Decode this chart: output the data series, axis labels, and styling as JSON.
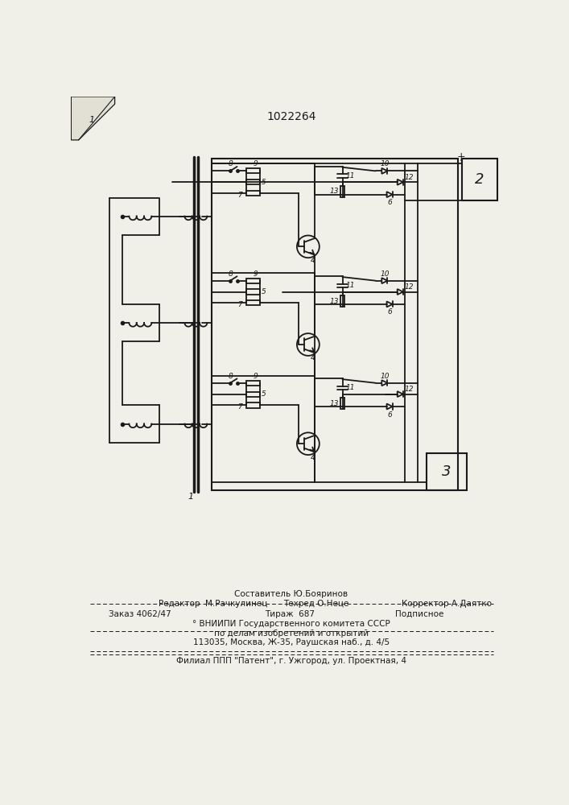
{
  "title": "1022264",
  "bg_color": "#f0efe8",
  "line_color": "#1a1a1a",
  "text_color": "#1a1a1a",
  "footer": {
    "line1_left": "Редактор  М.Рачкулинец",
    "line1_center": "Техред О.Неце",
    "line1_right": "Корректор А.Даятко",
    "line1_top": "Составитель Ю.Бояринов",
    "line2_left": "Заказ 4062/47",
    "line2_center": "Тираж  687",
    "line2_right": "Подписное",
    "line3": "° ВНИИПИ Государственного комитета СССР",
    "line4": "по делам изобретений и открытий",
    "line5": "113035, Москва, Ж-35, Раушская наб., д. 4/5",
    "line6": "Филиал ППП \"Патент\", г. Ужгород, ул. Проектная, 4"
  }
}
